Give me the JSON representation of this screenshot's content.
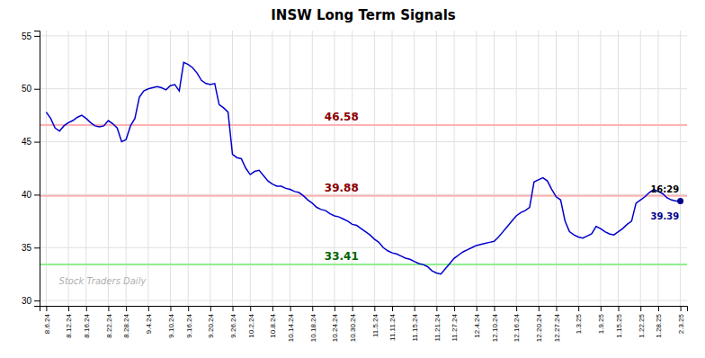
{
  "chart_data": {
    "type": "line",
    "title": "INSW Long Term Signals",
    "watermark": "Stock Traders Daily",
    "color": "#0000cc",
    "grid": true,
    "ylim": [
      29.5,
      55.5
    ],
    "yticks": [
      30,
      35,
      40,
      45,
      50,
      55
    ],
    "categories": [
      "8.6.24",
      null,
      null,
      null,
      null,
      "8.12.24",
      null,
      null,
      null,
      "8.16.24",
      null,
      null,
      null,
      null,
      "8.22.24",
      null,
      null,
      null,
      "8.28.24",
      null,
      null,
      null,
      null,
      "9.4.24",
      null,
      null,
      null,
      null,
      "9.10.24",
      null,
      null,
      null,
      "9.16.24",
      null,
      null,
      null,
      null,
      "9.20.24",
      null,
      null,
      null,
      null,
      "9.26.24",
      null,
      null,
      null,
      "10.2.24",
      null,
      null,
      null,
      null,
      "10.8.24",
      null,
      null,
      null,
      "10.14.24",
      null,
      null,
      null,
      null,
      "10.18.24",
      null,
      null,
      null,
      null,
      "10.24.24",
      null,
      null,
      null,
      "10.30.24",
      null,
      null,
      null,
      null,
      "11.5.24",
      null,
      null,
      null,
      "11.11.24",
      null,
      null,
      null,
      null,
      "11.15.24",
      null,
      null,
      null,
      null,
      "11.21.24",
      null,
      null,
      null,
      "11.27.24",
      null,
      null,
      null,
      null,
      "12.4.24",
      null,
      null,
      null,
      "12.10.24",
      null,
      null,
      null,
      null,
      "12.16.24",
      null,
      null,
      null,
      null,
      "12.20.24",
      null,
      null,
      null,
      "12.27.24",
      null,
      null,
      null,
      null,
      "1.3.25",
      null,
      null,
      null,
      null,
      "1.9.25",
      null,
      null,
      null,
      "1.15.25",
      null,
      null,
      null,
      null,
      "1.22.25",
      null,
      null,
      null,
      "1.28.25",
      null,
      null,
      null,
      null,
      "2.3.25"
    ],
    "values": [
      47.8,
      47.2,
      46.3,
      46.0,
      46.5,
      46.8,
      47.0,
      47.3,
      47.5,
      47.2,
      46.8,
      46.5,
      46.4,
      46.5,
      47.0,
      46.7,
      46.3,
      45.0,
      45.2,
      46.5,
      47.2,
      49.2,
      49.8,
      50.0,
      50.1,
      50.2,
      50.1,
      49.9,
      50.3,
      50.4,
      49.8,
      52.5,
      52.3,
      52.0,
      51.5,
      50.8,
      50.5,
      50.4,
      50.5,
      48.5,
      48.2,
      47.8,
      43.8,
      43.5,
      43.4,
      42.5,
      41.9,
      42.2,
      42.3,
      41.8,
      41.3,
      41.0,
      40.8,
      40.8,
      40.6,
      40.5,
      40.3,
      40.2,
      39.9,
      39.5,
      39.2,
      38.8,
      38.6,
      38.5,
      38.2,
      38.0,
      37.9,
      37.7,
      37.5,
      37.2,
      37.1,
      36.8,
      36.5,
      36.2,
      35.8,
      35.5,
      35.0,
      34.7,
      34.5,
      34.4,
      34.2,
      34.0,
      33.9,
      33.7,
      33.5,
      33.4,
      33.2,
      32.8,
      32.6,
      32.5,
      33.0,
      33.5,
      34.0,
      34.3,
      34.6,
      34.8,
      35.0,
      35.2,
      35.3,
      35.4,
      35.5,
      35.6,
      36.0,
      36.5,
      37.0,
      37.5,
      38.0,
      38.3,
      38.5,
      38.8,
      41.2,
      41.4,
      41.6,
      41.3,
      40.5,
      39.8,
      39.5,
      37.5,
      36.5,
      36.2,
      36.0,
      35.9,
      36.1,
      36.3,
      37.0,
      36.8,
      36.5,
      36.3,
      36.2,
      36.5,
      36.8,
      37.2,
      37.5,
      39.2,
      39.5,
      39.8,
      40.2,
      40.5,
      40.3,
      40.1,
      39.7,
      39.5,
      39.4,
      39.39
    ],
    "hlines": [
      {
        "value": 46.58,
        "label": "46.58",
        "color": "#ffb3b3",
        "label_color": "#8b0000"
      },
      {
        "value": 39.88,
        "label": "39.88",
        "color": "#ffb3b3",
        "label_color": "#8b0000"
      },
      {
        "value": 33.41,
        "label": "33.41",
        "color": "#90ee90",
        "label_color": "#006400"
      }
    ],
    "last_point": {
      "label": "16:29",
      "value": 39.39,
      "color": "#00008b"
    }
  }
}
